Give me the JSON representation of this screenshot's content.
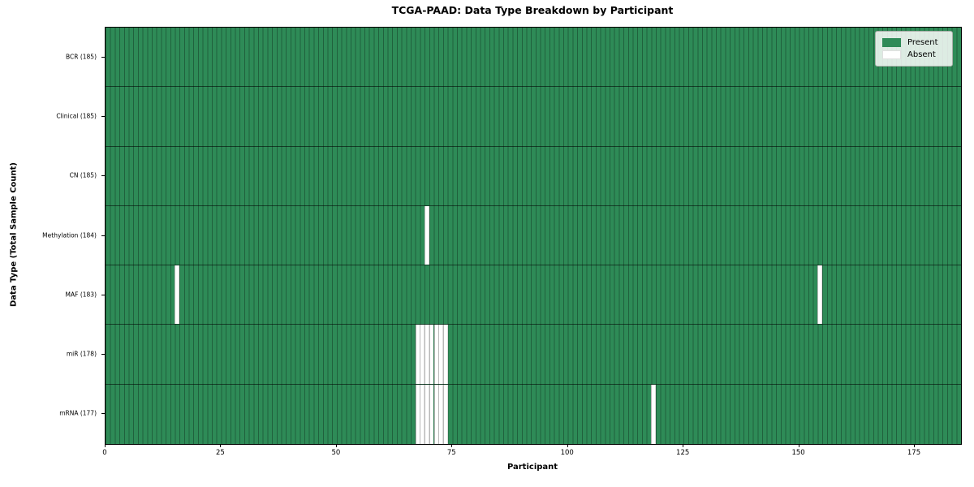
{
  "chart_data": {
    "type": "heatmap",
    "title": "TCGA-PAAD: Data Type Breakdown by Participant",
    "xlabel": "Participant",
    "ylabel": "Data Type (Total Sample Count)",
    "xlim": [
      0,
      185
    ],
    "n_participants": 185,
    "x_ticks": [
      0,
      25,
      50,
      75,
      100,
      125,
      150,
      175
    ],
    "rows": [
      {
        "name": "BCR",
        "label": "BCR (185)",
        "total_samples": 185,
        "absent_participants": []
      },
      {
        "name": "Clinical",
        "label": "Clinical (185)",
        "total_samples": 185,
        "absent_participants": []
      },
      {
        "name": "CN",
        "label": "CN (185)",
        "total_samples": 185,
        "absent_participants": []
      },
      {
        "name": "Methylation",
        "label": "Methylation (184)",
        "total_samples": 184,
        "absent_participants": [
          69
        ]
      },
      {
        "name": "MAF",
        "label": "MAF (183)",
        "total_samples": 183,
        "absent_participants": [
          15,
          154
        ]
      },
      {
        "name": "miR",
        "label": "miR (178)",
        "total_samples": 178,
        "absent_participants": [
          67,
          68,
          69,
          70,
          71,
          72,
          73
        ]
      },
      {
        "name": "mRNA",
        "label": "mRNA (177)",
        "total_samples": 177,
        "absent_participants": [
          67,
          68,
          69,
          70,
          71,
          72,
          73,
          118
        ]
      }
    ],
    "legend": {
      "position": "upper right",
      "entries": [
        {
          "label": "Present",
          "color": "#2e8b57"
        },
        {
          "label": "Absent",
          "color": "#ffffff"
        }
      ]
    },
    "colors": {
      "present": "#2e8b57",
      "absent": "#ffffff",
      "cell_edge_on_present": "rgba(0,0,0,0.30)",
      "cell_edge_on_absent": "rgba(0,0,0,0.28)",
      "row_divider": "rgba(0,0,0,0.55)",
      "plot_border": "#000000"
    },
    "grid": "per-participant vertical cell edges; horizontal row dividers"
  }
}
